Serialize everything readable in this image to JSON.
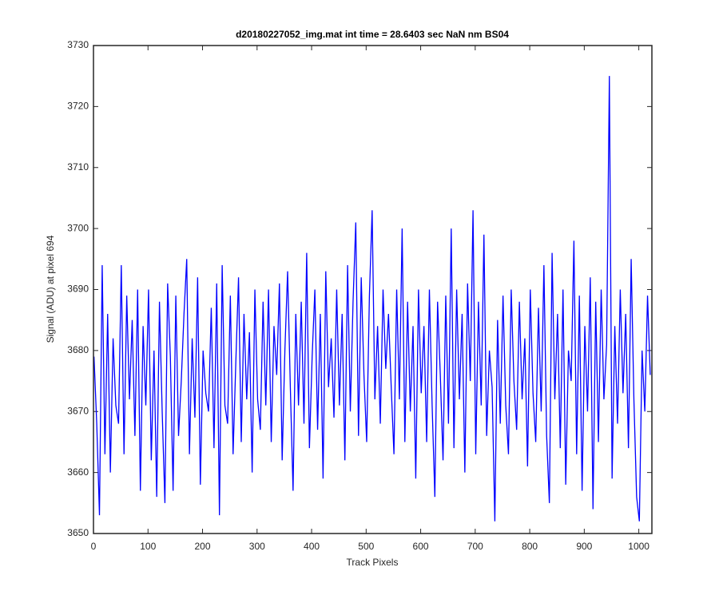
{
  "chart_data": {
    "type": "line",
    "title": "d20180227052_img.mat int time = 28.6403 sec  NaN nm BS04",
    "x_label": "Track Pixels",
    "y_label": "Signal (ADU) at pixel 694",
    "xlim": [
      0,
      1024
    ],
    "ylim": [
      3650,
      3730
    ],
    "xticks": [
      0,
      100,
      200,
      300,
      400,
      500,
      600,
      700,
      800,
      900,
      1000
    ],
    "yticks": [
      3650,
      3660,
      3670,
      3680,
      3690,
      3700,
      3710,
      3720,
      3730
    ],
    "grid": false,
    "series": [
      {
        "color": "#0000ff",
        "x": [
          1,
          6,
          11,
          16,
          21,
          26,
          31,
          36,
          41,
          46,
          51,
          56,
          61,
          66,
          71,
          76,
          81,
          86,
          91,
          96,
          101,
          106,
          111,
          116,
          121,
          126,
          131,
          136,
          141,
          146,
          151,
          156,
          161,
          166,
          171,
          176,
          181,
          186,
          191,
          196,
          201,
          206,
          211,
          216,
          221,
          226,
          231,
          236,
          241,
          246,
          251,
          256,
          261,
          266,
          271,
          276,
          281,
          286,
          291,
          296,
          301,
          306,
          311,
          316,
          321,
          326,
          331,
          336,
          341,
          346,
          351,
          356,
          361,
          366,
          371,
          376,
          381,
          386,
          391,
          396,
          401,
          406,
          411,
          416,
          421,
          426,
          431,
          436,
          441,
          446,
          451,
          456,
          461,
          466,
          471,
          476,
          481,
          486,
          491,
          496,
          501,
          506,
          511,
          516,
          521,
          526,
          531,
          536,
          541,
          546,
          551,
          556,
          561,
          566,
          571,
          576,
          581,
          586,
          591,
          596,
          601,
          606,
          611,
          616,
          621,
          626,
          631,
          636,
          641,
          646,
          651,
          656,
          661,
          666,
          671,
          676,
          681,
          686,
          691,
          696,
          701,
          706,
          711,
          716,
          721,
          726,
          731,
          736,
          741,
          746,
          751,
          756,
          761,
          766,
          771,
          776,
          781,
          786,
          791,
          796,
          801,
          806,
          811,
          816,
          821,
          826,
          831,
          836,
          841,
          846,
          851,
          856,
          861,
          866,
          871,
          876,
          881,
          886,
          891,
          896,
          901,
          906,
          911,
          916,
          921,
          926,
          931,
          936,
          941,
          946,
          951,
          956,
          961,
          966,
          971,
          976,
          981,
          986,
          991,
          996,
          1001,
          1006,
          1011,
          1016,
          1021
        ],
        "values": [
          3679,
          3668,
          3653,
          3694,
          3663,
          3686,
          3660,
          3682,
          3671,
          3668,
          3694,
          3663,
          3689,
          3672,
          3685,
          3666,
          3690,
          3657,
          3684,
          3671,
          3690,
          3662,
          3680,
          3656,
          3688,
          3670,
          3655,
          3691,
          3679,
          3657,
          3689,
          3666,
          3675,
          3686,
          3695,
          3663,
          3682,
          3669,
          3692,
          3658,
          3680,
          3673,
          3670,
          3687,
          3664,
          3691,
          3653,
          3694,
          3671,
          3668,
          3689,
          3663,
          3678,
          3692,
          3665,
          3686,
          3672,
          3683,
          3660,
          3690,
          3672,
          3667,
          3688,
          3671,
          3690,
          3665,
          3684,
          3676,
          3691,
          3662,
          3680,
          3693,
          3674,
          3657,
          3686,
          3671,
          3688,
          3668,
          3696,
          3664,
          3679,
          3690,
          3667,
          3686,
          3659,
          3693,
          3674,
          3682,
          3669,
          3690,
          3671,
          3686,
          3662,
          3694,
          3670,
          3688,
          3701,
          3666,
          3692,
          3676,
          3665,
          3689,
          3703,
          3672,
          3684,
          3668,
          3690,
          3677,
          3686,
          3674,
          3663,
          3690,
          3672,
          3700,
          3665,
          3688,
          3670,
          3684,
          3659,
          3690,
          3673,
          3684,
          3665,
          3690,
          3671,
          3656,
          3688,
          3676,
          3662,
          3689,
          3668,
          3700,
          3664,
          3690,
          3672,
          3686,
          3660,
          3691,
          3675,
          3703,
          3663,
          3688,
          3671,
          3699,
          3666,
          3680,
          3674,
          3652,
          3685,
          3668,
          3689,
          3671,
          3663,
          3690,
          3675,
          3667,
          3688,
          3672,
          3682,
          3661,
          3690,
          3673,
          3665,
          3687,
          3670,
          3694,
          3666,
          3655,
          3696,
          3672,
          3686,
          3664,
          3690,
          3658,
          3680,
          3675,
          3698,
          3663,
          3689,
          3657,
          3684,
          3670,
          3692,
          3654,
          3688,
          3665,
          3690,
          3672,
          3681,
          3725,
          3659,
          3684,
          3668,
          3690,
          3673,
          3686,
          3664,
          3695,
          3672,
          3656,
          3652,
          3680,
          3670,
          3689,
          3676
        ]
      }
    ]
  }
}
